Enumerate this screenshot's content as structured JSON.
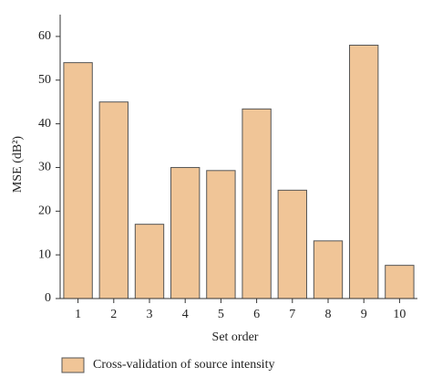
{
  "chart_data": {
    "type": "bar",
    "x_label": "Set order",
    "y_label": "MSE (dB²)",
    "categories": [
      "1",
      "2",
      "3",
      "4",
      "5",
      "6",
      "7",
      "8",
      "9",
      "10"
    ],
    "series": [
      {
        "name": "Cross-validation of source intensity",
        "color": "#f0c597",
        "values": [
          54,
          45,
          17,
          30,
          29.3,
          43.4,
          24.8,
          13.2,
          58,
          7.6
        ]
      }
    ],
    "ylim": [
      0,
      65
    ],
    "yticks": [
      0,
      10,
      20,
      30,
      40,
      50,
      60
    ],
    "grid": false
  }
}
